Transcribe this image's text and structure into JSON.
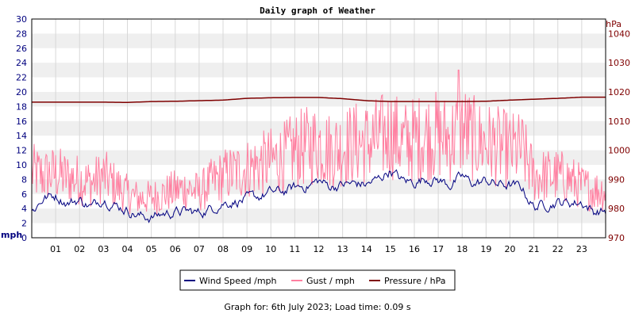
{
  "chart_data": {
    "type": "line",
    "title": "Daily graph of Weather",
    "left_axis_unit": "mph",
    "right_axis_unit": "hPa",
    "left_ylim": [
      0,
      30
    ],
    "right_ylim": [
      970,
      1045
    ],
    "left_ticks": [
      "0",
      "2",
      "4",
      "6",
      "8",
      "10",
      "12",
      "14",
      "16",
      "18",
      "20",
      "22",
      "24",
      "26",
      "28",
      "30"
    ],
    "right_ticks": [
      "970",
      "980",
      "990",
      "1000",
      "1010",
      "1020",
      "1030",
      "1040"
    ],
    "x_ticks": [
      "01",
      "02",
      "03",
      "04",
      "05",
      "06",
      "07",
      "08",
      "09",
      "10",
      "11",
      "12",
      "13",
      "14",
      "15",
      "16",
      "17",
      "18",
      "19",
      "20",
      "21",
      "22",
      "23"
    ],
    "x_range_hours": [
      0,
      24
    ],
    "grid": "horizontal alternating bands",
    "legend_position": "bottom",
    "series": [
      {
        "name": "Wind Speed /mph",
        "color": "#000080",
        "axis": "left",
        "hours": [
          0,
          0.5,
          1,
          1.5,
          2,
          2.5,
          3,
          3.5,
          4,
          4.5,
          5,
          5.5,
          6,
          6.5,
          7,
          7.5,
          8,
          8.5,
          9,
          9.5,
          10,
          10.5,
          11,
          11.5,
          12,
          12.5,
          13,
          13.5,
          14,
          14.5,
          15,
          15.5,
          16,
          16.5,
          17,
          17.5,
          18,
          18.5,
          19,
          19.5,
          20,
          20.5,
          21,
          21.5,
          22,
          22.5,
          23,
          23.5,
          24
        ],
        "values": [
          3.5,
          5.5,
          5.8,
          4.8,
          5.2,
          4.2,
          5.5,
          4.5,
          3.8,
          3.0,
          2.8,
          3.3,
          3.5,
          3.6,
          3.4,
          4.0,
          4.8,
          5.0,
          5.2,
          5.6,
          6.2,
          6.3,
          6.9,
          7.1,
          7.8,
          7.0,
          7.3,
          7.4,
          7.3,
          8.0,
          9.3,
          7.8,
          7.6,
          8.2,
          7.9,
          7.3,
          8.3,
          7.4,
          7.8,
          7.3,
          7.2,
          6.8,
          4.2,
          4.6,
          4.9,
          4.8,
          4.9,
          3.6,
          3.7
        ]
      },
      {
        "name": "Gust / mph",
        "color": "#ff7fa0",
        "axis": "left",
        "hours": [
          0,
          0.5,
          1,
          1.5,
          2,
          2.5,
          3,
          3.5,
          4,
          4.5,
          5,
          5.5,
          6,
          6.5,
          7,
          7.5,
          8,
          8.5,
          9,
          9.5,
          10,
          10.5,
          11,
          11.5,
          12,
          12.5,
          13,
          13.5,
          14,
          14.5,
          15,
          15.5,
          16,
          16.5,
          17,
          17.5,
          18,
          18.5,
          19,
          19.5,
          20,
          20.5,
          21,
          21.5,
          22,
          22.5,
          23,
          23.5,
          24
        ],
        "values": [
          9.0,
          8.5,
          8.8,
          8.2,
          8.0,
          7.5,
          8.5,
          7.2,
          6.0,
          5.4,
          5.5,
          6.0,
          6.5,
          6.8,
          6.2,
          7.5,
          8.5,
          9.0,
          9.5,
          10.0,
          10.5,
          11.0,
          12.0,
          12.5,
          13.0,
          12.0,
          12.5,
          13.0,
          13.0,
          13.5,
          14.5,
          13.0,
          13.5,
          14.0,
          14.0,
          13.5,
          15.0,
          13.5,
          13.0,
          12.5,
          12.0,
          12.0,
          8.5,
          8.5,
          8.5,
          8.0,
          7.0,
          6.5,
          6.5
        ],
        "peak": {
          "hour": 17.85,
          "value": 23
        }
      },
      {
        "name": "Pressure / hPa",
        "color": "#7f0000",
        "axis": "right",
        "hours": [
          0,
          1,
          2,
          3,
          4,
          5,
          6,
          7,
          8,
          9,
          10,
          11,
          12,
          13,
          14,
          15,
          16,
          17,
          18,
          19,
          20,
          21,
          22,
          23,
          24
        ],
        "values": [
          1016.5,
          1016.5,
          1016.5,
          1016.5,
          1016.4,
          1016.7,
          1016.8,
          1017.0,
          1017.2,
          1017.8,
          1018.0,
          1018.1,
          1018.1,
          1017.7,
          1017.0,
          1016.7,
          1016.7,
          1016.7,
          1016.7,
          1016.8,
          1017.2,
          1017.5,
          1017.8,
          1018.2,
          1018.2
        ]
      }
    ]
  },
  "footer": "Graph for: 6th July 2023; Load time: 0.09 s"
}
